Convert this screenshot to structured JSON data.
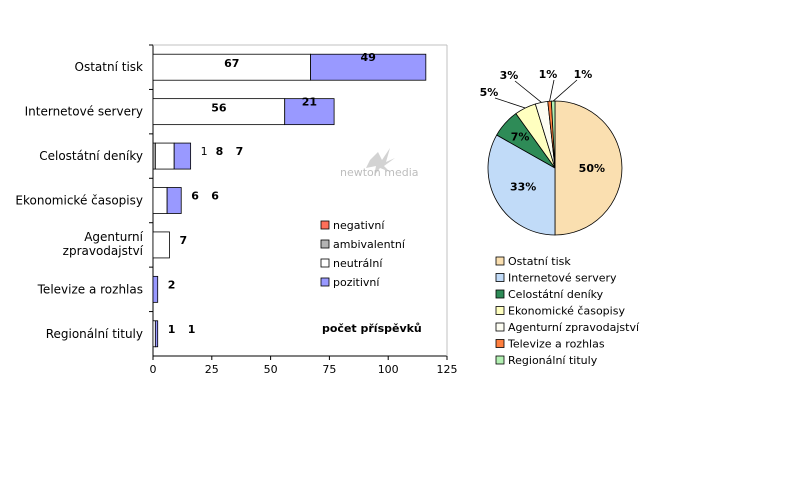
{
  "chart_data": [
    {
      "type": "bar",
      "orientation": "horizontal",
      "stacked": true,
      "categories": [
        "Ostatní tisk",
        "Internetové servery",
        "Celostátní deníky",
        "Ekonomické časopisy",
        "Agenturní zpravodajství",
        "Televize a rozhlas",
        "Regionální tituly"
      ],
      "series": [
        {
          "name": "negativní",
          "color": "#ff6f5a",
          "values": [
            0,
            0,
            0,
            0,
            0,
            0,
            0
          ]
        },
        {
          "name": "ambivalentní",
          "color": "#b3b3b3",
          "values": [
            0,
            0,
            1,
            0,
            0,
            0,
            0
          ]
        },
        {
          "name": "neutrální",
          "color": "#ffffff",
          "values": [
            67,
            56,
            8,
            6,
            7,
            0,
            1
          ]
        },
        {
          "name": "pozitivní",
          "color": "#9999ff",
          "values": [
            49,
            21,
            7,
            6,
            0,
            2,
            1
          ]
        }
      ],
      "data_labels": [
        [
          "",
          "",
          "67",
          "49"
        ],
        [
          "",
          "",
          "56",
          "21"
        ],
        [
          "",
          "1",
          "8",
          "7"
        ],
        [
          "",
          "",
          "6",
          "6"
        ],
        [
          "",
          "",
          "7",
          ""
        ],
        [
          "",
          "",
          "",
          "2"
        ],
        [
          "",
          "",
          "1",
          "1"
        ]
      ],
      "xticks": [
        "0",
        "25",
        "50",
        "75",
        "100",
        "125"
      ],
      "xlim": [
        0,
        125
      ],
      "annotation": "počet příspěvků",
      "legend_position": "inside-lower-right"
    },
    {
      "type": "pie",
      "labels": [
        "Ostatní tisk",
        "Internetové servery",
        "Celostátní deníky",
        "Ekonomické časopisy",
        "Agenturní zpravodajství",
        "Televize a rozhlas",
        "Regionální tituly"
      ],
      "values": [
        116,
        77,
        16,
        12,
        7,
        2,
        2
      ],
      "percent_labels": [
        "50%",
        "33%",
        "7%",
        "5%",
        "3%",
        "1%",
        "1%"
      ],
      "colors": [
        "#fadfb0",
        "#c1dbf8",
        "#2e8b57",
        "#ffffc0",
        "#fdfdf2",
        "#ff7f3f",
        "#b2f0b2"
      ],
      "legend_position": "bottom"
    }
  ],
  "watermark": "newton media"
}
